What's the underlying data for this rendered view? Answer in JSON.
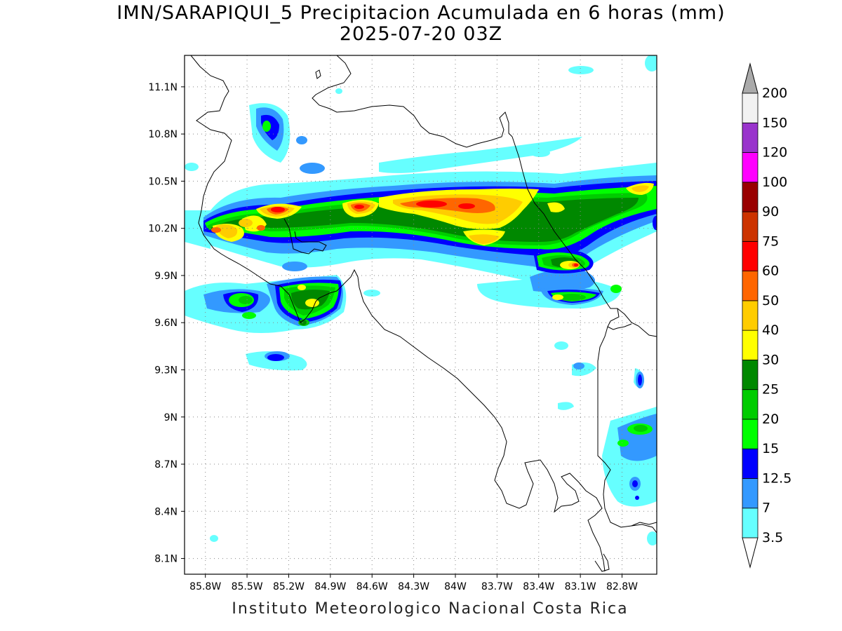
{
  "title_line1": "IMN/SARAPIQUI_5 Precipitacion Acumulada en 6 horas (mm)",
  "title_line2": "2025-07-20 03Z",
  "credit": "Instituto Meteorologico Nacional Costa Rica",
  "map": {
    "lon_range": [
      -85.95,
      -82.55
    ],
    "lat_range": [
      8.0,
      11.3
    ],
    "lat_ticks": [
      {
        "value": 11.1,
        "label": "11.1N"
      },
      {
        "value": 10.8,
        "label": "10.8N"
      },
      {
        "value": 10.5,
        "label": "10.5N"
      },
      {
        "value": 10.2,
        "label": "10.2N"
      },
      {
        "value": 9.9,
        "label": "9.9N"
      },
      {
        "value": 9.6,
        "label": "9.6N"
      },
      {
        "value": 9.3,
        "label": "9.3N"
      },
      {
        "value": 9.0,
        "label": "9N"
      },
      {
        "value": 8.7,
        "label": "8.7N"
      },
      {
        "value": 8.4,
        "label": "8.4N"
      },
      {
        "value": 8.1,
        "label": "8.1N"
      }
    ],
    "lon_ticks": [
      {
        "value": -85.8,
        "label": "85.8W"
      },
      {
        "value": -85.5,
        "label": "85.5W"
      },
      {
        "value": -85.2,
        "label": "85.2W"
      },
      {
        "value": -84.9,
        "label": "84.9W"
      },
      {
        "value": -84.6,
        "label": "84.6W"
      },
      {
        "value": -84.3,
        "label": "84.3W"
      },
      {
        "value": -84.0,
        "label": "84W"
      },
      {
        "value": -83.7,
        "label": "83.7W"
      },
      {
        "value": -83.4,
        "label": "83.4W"
      },
      {
        "value": -83.1,
        "label": "83.1W"
      },
      {
        "value": -82.8,
        "label": "82.8W"
      }
    ],
    "grid": "dotted"
  },
  "colorbar": {
    "levels": [
      {
        "label": "3.5",
        "color": "#66ffff"
      },
      {
        "label": "7",
        "color": "#3399ff"
      },
      {
        "label": "12.5",
        "color": "#0000ff"
      },
      {
        "label": "15",
        "color": "#00ff00"
      },
      {
        "label": "20",
        "color": "#00cc00"
      },
      {
        "label": "25",
        "color": "#008800"
      },
      {
        "label": "30",
        "color": "#ffff00"
      },
      {
        "label": "40",
        "color": "#ffcc00"
      },
      {
        "label": "50",
        "color": "#ff6600"
      },
      {
        "label": "60",
        "color": "#ff0000"
      },
      {
        "label": "75",
        "color": "#cc3300"
      },
      {
        "label": "90",
        "color": "#990000"
      },
      {
        "label": "100",
        "color": "#ff00ff"
      },
      {
        "label": "120",
        "color": "#9933cc"
      },
      {
        "label": "150",
        "color": "#f2f2f2"
      },
      {
        "label": "200",
        "color": "#aaaaaa"
      }
    ]
  }
}
